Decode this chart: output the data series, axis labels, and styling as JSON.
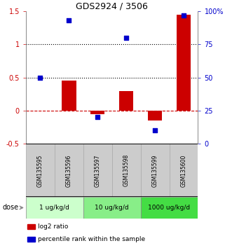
{
  "title": "GDS2924 / 3506",
  "samples": [
    "GSM135595",
    "GSM135596",
    "GSM135597",
    "GSM135598",
    "GSM135599",
    "GSM135600"
  ],
  "log2_ratio": [
    0.0,
    0.45,
    -0.05,
    0.3,
    -0.15,
    1.45
  ],
  "percentile_rank": [
    0.5,
    0.93,
    0.2,
    0.8,
    0.1,
    0.97
  ],
  "bar_color": "#cc0000",
  "dot_color": "#0000cc",
  "left_ylim": [
    -0.5,
    1.5
  ],
  "right_ylim": [
    0,
    1.0
  ],
  "left_yticks": [
    -0.5,
    0,
    0.5,
    1.0,
    1.5
  ],
  "right_yticks": [
    0,
    0.25,
    0.5,
    0.75,
    1.0
  ],
  "right_yticklabels": [
    "0",
    "25",
    "50",
    "75",
    "100%"
  ],
  "left_yticklabels": [
    "-0.5",
    "0",
    "0.5",
    "1",
    "1.5"
  ],
  "hline_dotted": [
    0.5,
    1.0
  ],
  "hline_dashed": 0.0,
  "dose_groups": [
    {
      "label": "1 ug/kg/d",
      "samples": [
        0,
        1
      ],
      "color": "#ccffcc"
    },
    {
      "label": "10 ug/kg/d",
      "samples": [
        2,
        3
      ],
      "color": "#88ee88"
    },
    {
      "label": "1000 ug/kg/d",
      "samples": [
        4,
        5
      ],
      "color": "#44dd44"
    }
  ],
  "dose_label": "dose",
  "legend_items": [
    {
      "color": "#cc0000",
      "label": "log2 ratio"
    },
    {
      "color": "#0000cc",
      "label": "percentile rank within the sample"
    }
  ],
  "bar_width": 0.5,
  "dot_size": 18,
  "sample_box_color": "#cccccc",
  "sample_box_edgecolor": "#aaaaaa"
}
